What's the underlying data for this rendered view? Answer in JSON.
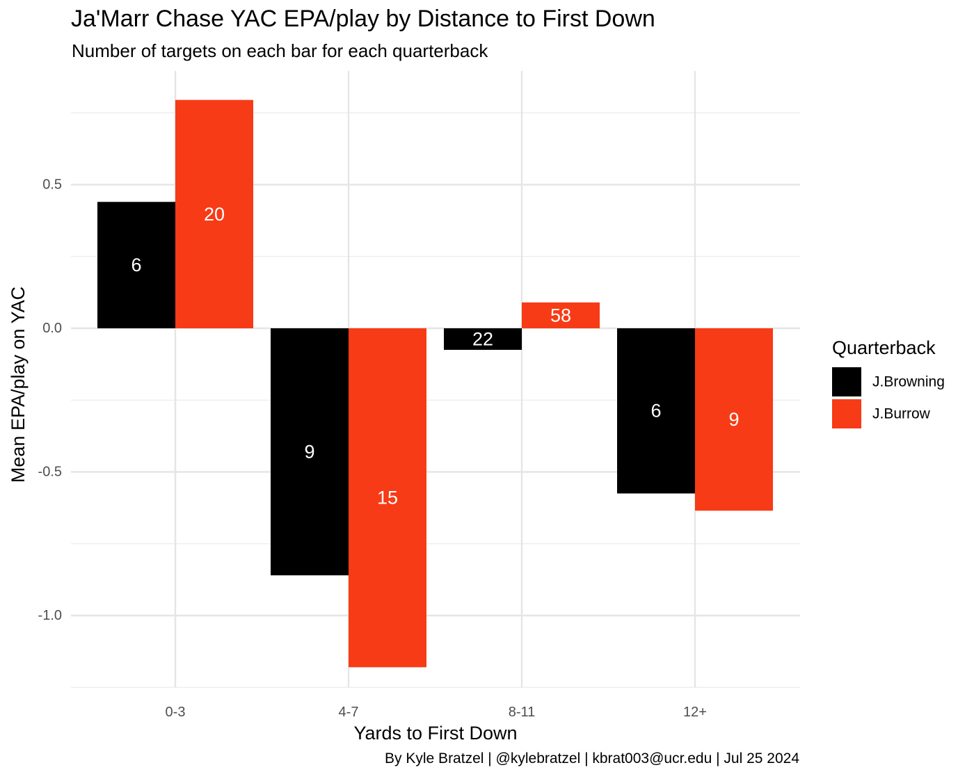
{
  "caption": "By Kyle Bratzel | @kylebratzel | kbrat003@ucr.edu | Jul 25 2024",
  "chart_data": {
    "type": "bar",
    "title": "Ja'Marr Chase YAC EPA/play by Distance to First Down",
    "subtitle": "Number of targets on each bar for each quarterback",
    "xlabel": "Yards to First Down",
    "ylabel": "Mean EPA/play on YAC",
    "categories": [
      "0-3",
      "4-7",
      "8-11",
      "12+"
    ],
    "y_ticks": [
      0.5,
      0.0,
      -0.5,
      -1.0
    ],
    "y_tick_labels": [
      "0.5",
      "0.0",
      "-0.5",
      "-1.0"
    ],
    "ylim": [
      -1.25,
      0.82
    ],
    "grid": true,
    "legend": {
      "title": "Quarterback",
      "position": "right"
    },
    "series": [
      {
        "name": "J.Browning",
        "color": "#000000",
        "values": [
          0.44,
          -0.86,
          -0.075,
          -0.575
        ],
        "labels": [
          "6",
          "9",
          "22",
          "6"
        ]
      },
      {
        "name": "J.Burrow",
        "color": "#f73b16",
        "values": [
          0.795,
          -1.18,
          0.09,
          -0.635
        ],
        "labels": [
          "20",
          "15",
          "58",
          "9"
        ]
      }
    ]
  }
}
